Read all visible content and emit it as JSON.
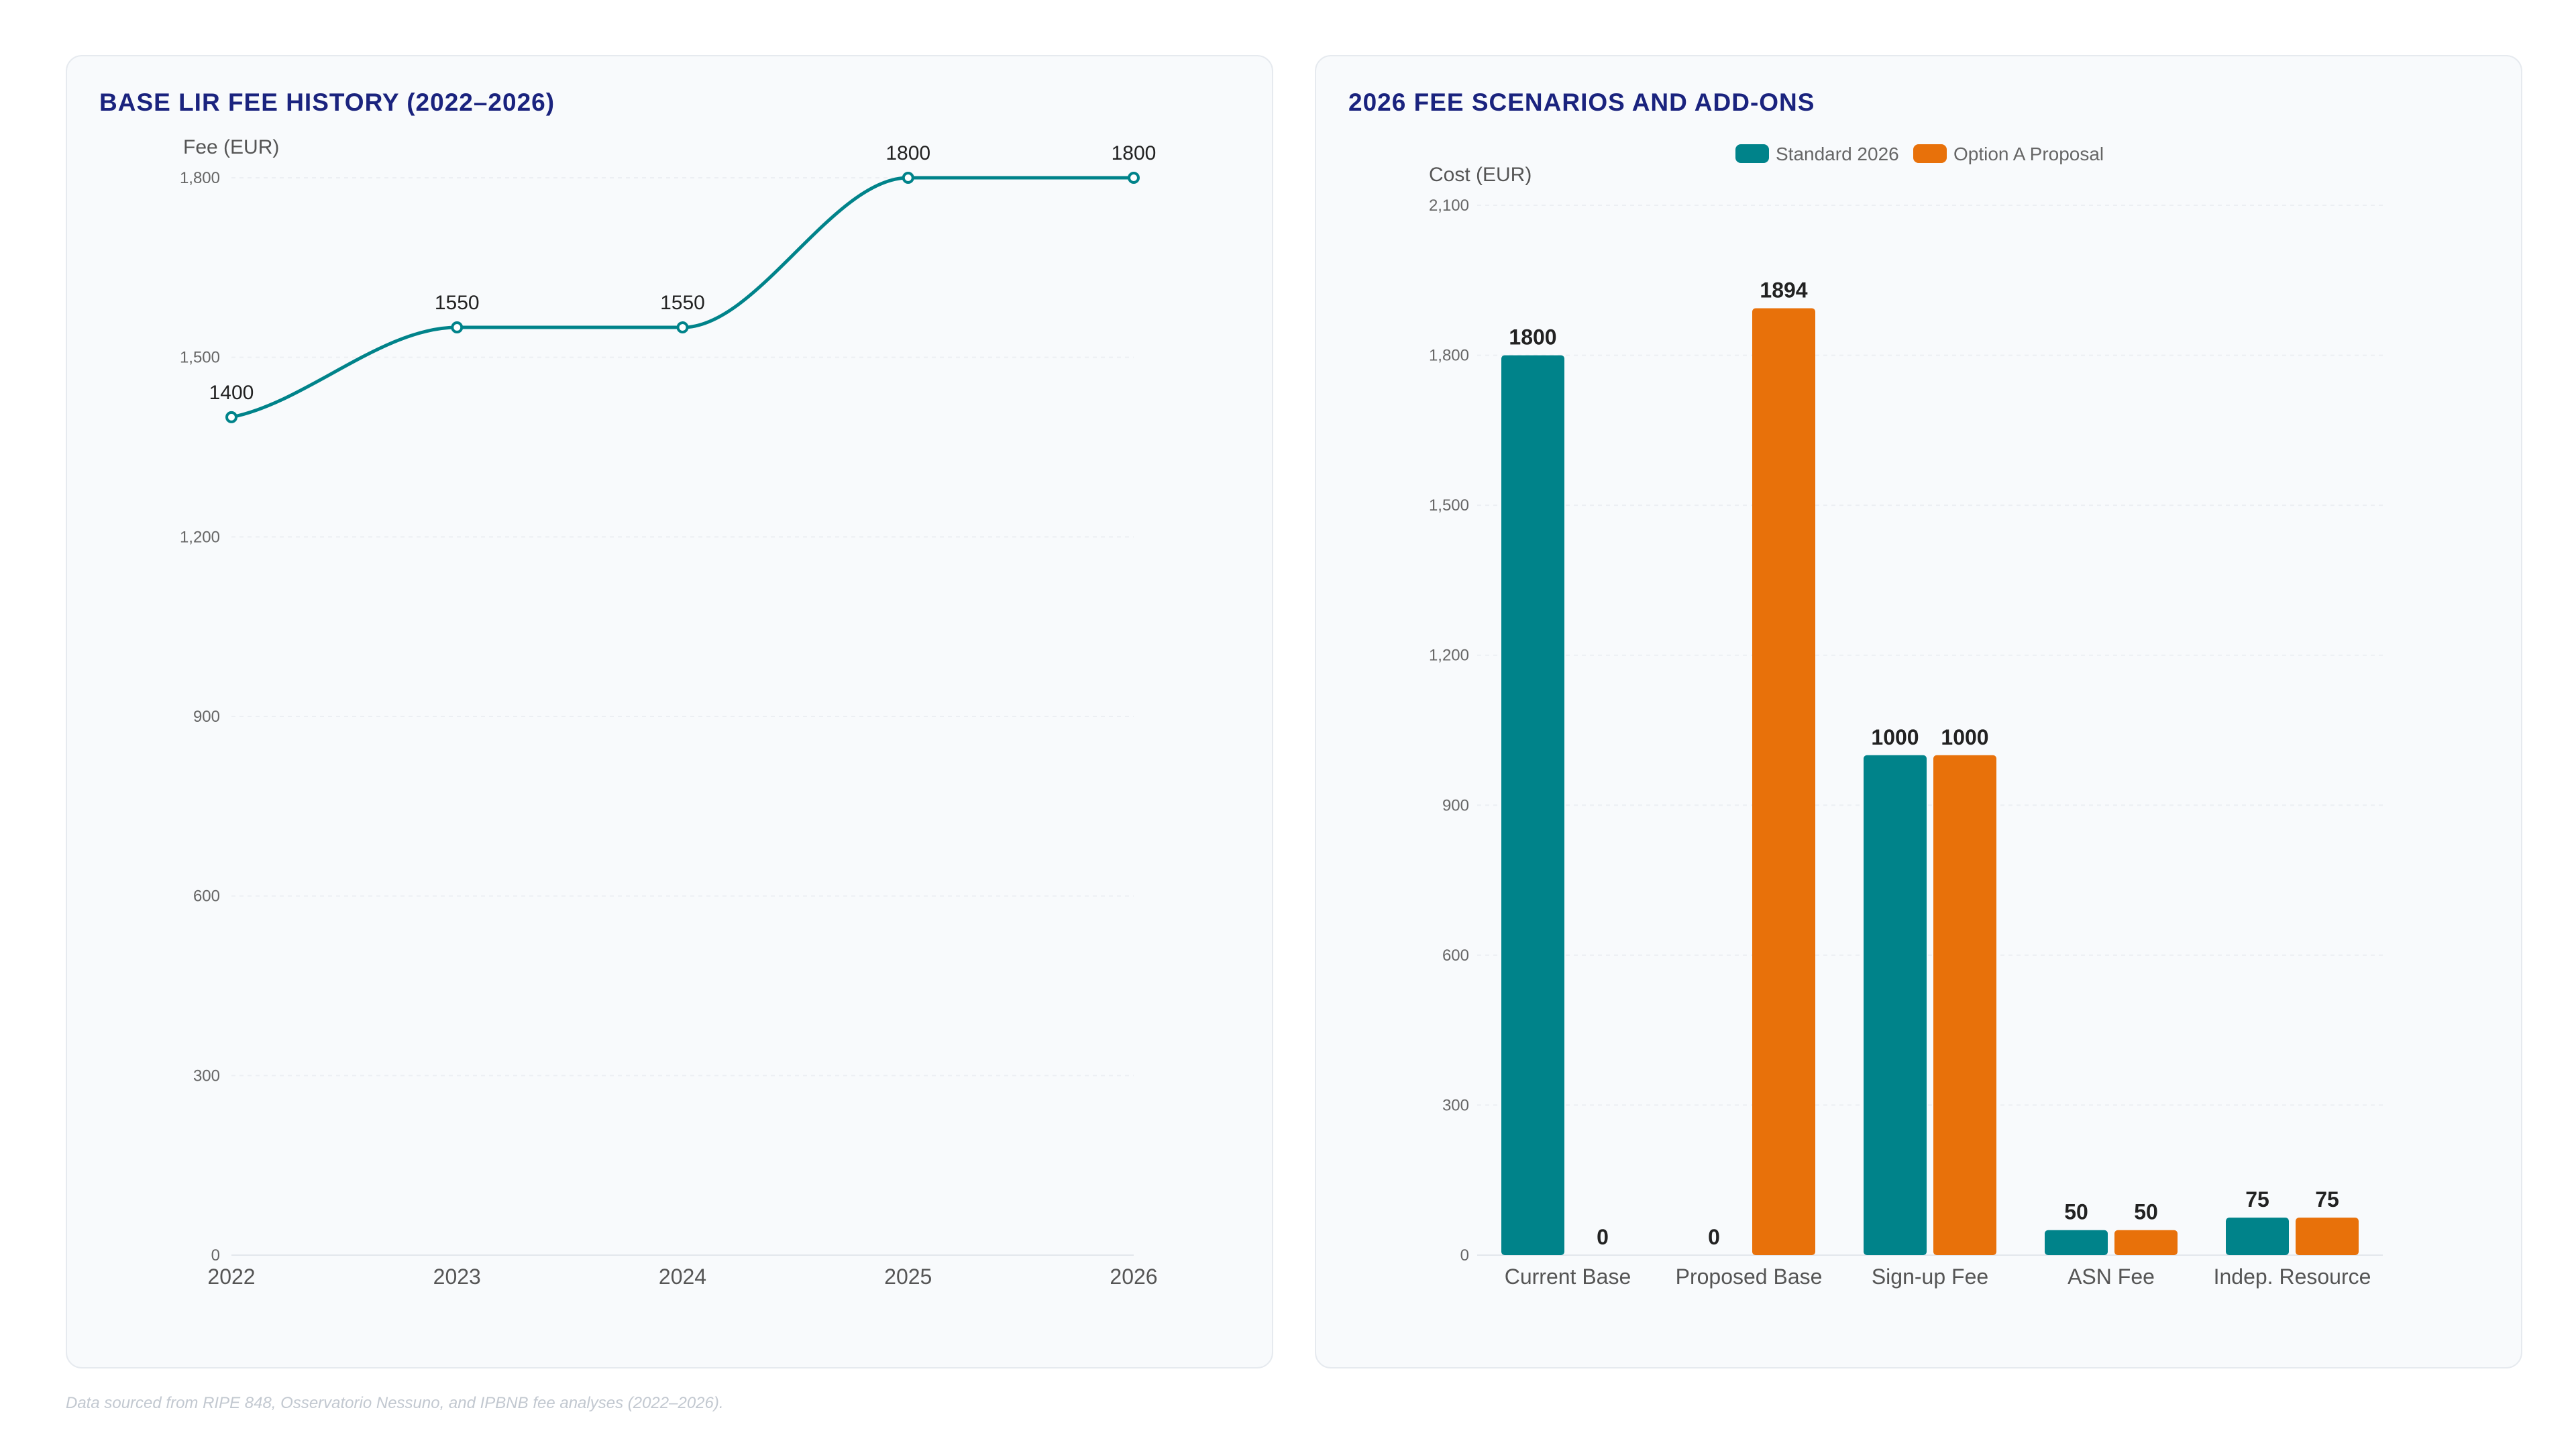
{
  "footnote": "Data sourced from RIPE 848, Osservatorio Nessuno, and IPBNB fee analyses (2022–2026).",
  "colors": {
    "teal": "#00838a",
    "orange": "#e8710a",
    "title": "#1a237e"
  },
  "chart_data": [
    {
      "type": "line",
      "title": "BASE LIR FEE HISTORY (2022–2026)",
      "ylabel": "Fee (EUR)",
      "xlabel": "",
      "x": [
        "2022",
        "2023",
        "2024",
        "2025",
        "2026"
      ],
      "series": [
        {
          "values": [
            1400,
            1550,
            1550,
            1800,
            1800
          ],
          "color": "#00838a"
        }
      ],
      "yticks": [
        "0",
        "300",
        "600",
        "900",
        "1,200",
        "1,500",
        "1,800"
      ],
      "ylim": [
        0,
        1800
      ],
      "grid": true,
      "smooth": true
    },
    {
      "type": "bar",
      "title": "2026 FEE SCENARIOS AND ADD-ONS",
      "ylabel": "Cost (EUR)",
      "xlabel": "",
      "categories": [
        "Current Base",
        "Proposed Base",
        "Sign-up Fee",
        "ASN Fee",
        "Indep. Resource"
      ],
      "series": [
        {
          "name": "Standard 2026",
          "values": [
            1800,
            0,
            1000,
            50,
            75
          ],
          "color": "#00838a"
        },
        {
          "name": "Option A Proposal",
          "values": [
            0,
            1894,
            1000,
            50,
            75
          ],
          "color": "#e8710a"
        }
      ],
      "yticks": [
        "0",
        "300",
        "600",
        "900",
        "1,200",
        "1,500",
        "1,800",
        "2,100"
      ],
      "ylim": [
        0,
        2100
      ],
      "grid": true,
      "legend": "top"
    }
  ]
}
